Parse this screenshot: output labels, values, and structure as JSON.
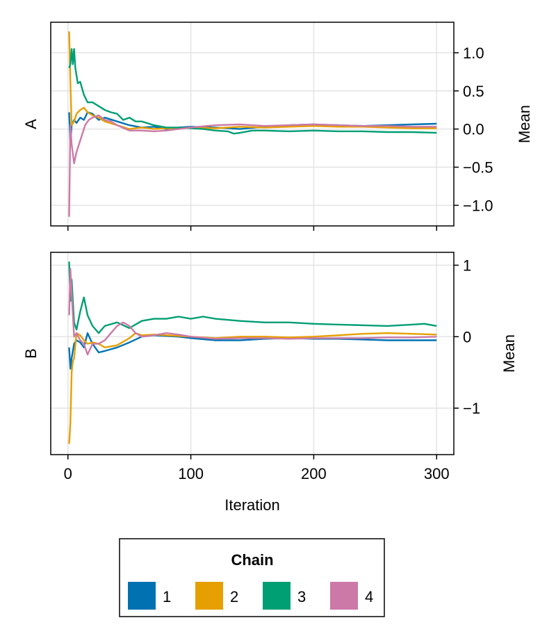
{
  "chart_data": [
    {
      "type": "line",
      "panel_label": "A",
      "ylabel": "Mean",
      "yaxis_side": "right",
      "xlim": [
        -14,
        314
      ],
      "ylim": [
        -1.27,
        1.4
      ],
      "yticks": [
        -1.0,
        -0.5,
        0.0,
        0.5,
        1.0
      ],
      "ytick_labels": [
        "−1.0",
        "−0.5",
        "0.0",
        "0.5",
        "1.0"
      ],
      "xticks": [
        0,
        100,
        200,
        300
      ],
      "show_xtick_labels": false,
      "grid": true,
      "series": [
        {
          "name": "1",
          "color": "#0072b2",
          "x": [
            1,
            2,
            3,
            5,
            7,
            10,
            13,
            16,
            20,
            25,
            30,
            40,
            50,
            60,
            70,
            80,
            90,
            100,
            120,
            140,
            160,
            180,
            200,
            220,
            240,
            260,
            280,
            300
          ],
          "y": [
            0.22,
            -0.2,
            0.05,
            0.12,
            0.08,
            0.15,
            0.12,
            0.22,
            0.2,
            0.12,
            0.15,
            0.1,
            0.05,
            0.02,
            0.03,
            0.0,
            0.02,
            0.03,
            0.02,
            0.0,
            0.03,
            0.05,
            0.06,
            0.05,
            0.04,
            0.05,
            0.06,
            0.07
          ]
        },
        {
          "name": "2",
          "color": "#e69f00",
          "x": [
            1,
            2,
            3,
            5,
            7,
            10,
            13,
            16,
            20,
            25,
            30,
            40,
            50,
            60,
            70,
            80,
            90,
            100,
            120,
            140,
            160,
            180,
            200,
            220,
            240,
            260,
            280,
            300
          ],
          "y": [
            1.28,
            0.6,
            0.05,
            0.1,
            0.2,
            0.25,
            0.28,
            0.22,
            0.18,
            0.15,
            0.1,
            0.05,
            0.0,
            0.02,
            0.0,
            0.01,
            0.0,
            0.02,
            0.01,
            0.03,
            0.02,
            0.03,
            0.04,
            0.03,
            0.03,
            0.02,
            0.01,
            0.01
          ]
        },
        {
          "name": "3",
          "color": "#009e73",
          "x": [
            1,
            2,
            3,
            4,
            5,
            6,
            8,
            10,
            13,
            16,
            20,
            25,
            30,
            35,
            40,
            45,
            50,
            55,
            60,
            70,
            80,
            90,
            100,
            110,
            120,
            130,
            135,
            140,
            150,
            160,
            180,
            200,
            220,
            240,
            260,
            280,
            300
          ],
          "y": [
            0.8,
            0.85,
            1.05,
            0.85,
            1.05,
            0.8,
            0.6,
            0.62,
            0.45,
            0.35,
            0.35,
            0.3,
            0.25,
            0.22,
            0.2,
            0.12,
            0.15,
            0.1,
            0.1,
            0.05,
            0.02,
            0.02,
            0.01,
            0.0,
            -0.02,
            -0.03,
            -0.06,
            -0.05,
            -0.02,
            -0.02,
            -0.03,
            -0.02,
            -0.03,
            -0.03,
            -0.04,
            -0.04,
            -0.05
          ]
        },
        {
          "name": "4",
          "color": "#cc79a7",
          "x": [
            1,
            2,
            3,
            5,
            7,
            9,
            11,
            14,
            17,
            20,
            25,
            30,
            35,
            40,
            50,
            60,
            70,
            80,
            90,
            100,
            120,
            140,
            160,
            180,
            200,
            220,
            240,
            260,
            280,
            300
          ],
          "y": [
            -1.15,
            0.05,
            -0.2,
            -0.45,
            -0.3,
            -0.2,
            -0.1,
            0.05,
            0.12,
            0.15,
            0.18,
            0.12,
            0.1,
            0.05,
            -0.02,
            -0.02,
            -0.03,
            -0.02,
            0.0,
            0.02,
            0.05,
            0.06,
            0.04,
            0.05,
            0.06,
            0.05,
            0.04,
            0.04,
            0.03,
            0.03
          ]
        }
      ]
    },
    {
      "type": "line",
      "panel_label": "B",
      "ylabel": "Mean",
      "yaxis_side": "right",
      "xlim": [
        -14,
        314
      ],
      "ylim": [
        -1.65,
        1.18
      ],
      "yticks": [
        -1,
        0,
        1
      ],
      "ytick_labels": [
        "−1",
        "0",
        "1"
      ],
      "xticks": [
        0,
        100,
        200,
        300
      ],
      "xtick_labels": [
        "0",
        "100",
        "200",
        "300"
      ],
      "xlabel": "Iteration",
      "show_xtick_labels": true,
      "grid": true,
      "series": [
        {
          "name": "1",
          "color": "#0072b2",
          "x": [
            1,
            2,
            3,
            5,
            7,
            10,
            13,
            16,
            20,
            25,
            30,
            40,
            50,
            60,
            70,
            80,
            90,
            100,
            120,
            140,
            160,
            180,
            200,
            220,
            240,
            260,
            280,
            300
          ],
          "y": [
            -0.15,
            -0.45,
            -0.3,
            -0.1,
            -0.05,
            -0.08,
            -0.15,
            0.05,
            -0.1,
            -0.22,
            -0.2,
            -0.15,
            -0.08,
            0.0,
            0.02,
            0.01,
            0.0,
            -0.02,
            -0.05,
            -0.05,
            -0.03,
            -0.02,
            -0.03,
            -0.03,
            -0.04,
            -0.05,
            -0.05,
            -0.05
          ]
        },
        {
          "name": "2",
          "color": "#e69f00",
          "x": [
            1,
            2,
            3,
            4,
            5,
            7,
            10,
            13,
            16,
            20,
            25,
            30,
            40,
            50,
            55,
            60,
            70,
            80,
            90,
            100,
            120,
            140,
            160,
            180,
            200,
            220,
            240,
            260,
            280,
            300
          ],
          "y": [
            -1.5,
            -1.2,
            -0.5,
            -0.35,
            -0.3,
            0.05,
            0.02,
            -0.05,
            -0.1,
            -0.08,
            -0.1,
            -0.15,
            -0.12,
            -0.02,
            0.05,
            0.02,
            0.03,
            0.02,
            0.01,
            0.0,
            -0.02,
            0.0,
            0.0,
            -0.01,
            0.0,
            0.02,
            0.04,
            0.05,
            0.04,
            0.03
          ]
        },
        {
          "name": "3",
          "color": "#009e73",
          "x": [
            1,
            2,
            3,
            5,
            7,
            10,
            13,
            16,
            20,
            25,
            30,
            40,
            50,
            60,
            70,
            80,
            90,
            100,
            110,
            120,
            140,
            160,
            180,
            200,
            220,
            240,
            260,
            280,
            290,
            300
          ],
          "y": [
            1.05,
            0.5,
            0.8,
            0.2,
            0.1,
            0.35,
            0.55,
            0.3,
            0.15,
            0.05,
            0.15,
            0.2,
            0.12,
            0.22,
            0.25,
            0.25,
            0.28,
            0.25,
            0.28,
            0.25,
            0.22,
            0.2,
            0.2,
            0.18,
            0.17,
            0.16,
            0.15,
            0.17,
            0.18,
            0.15
          ]
        },
        {
          "name": "4",
          "color": "#cc79a7",
          "x": [
            1,
            2,
            3,
            5,
            7,
            10,
            13,
            16,
            20,
            25,
            30,
            35,
            40,
            45,
            50,
            55,
            60,
            70,
            80,
            90,
            100,
            120,
            140,
            160,
            180,
            200,
            220,
            240,
            260,
            280,
            300
          ],
          "y": [
            0.3,
            0.95,
            0.6,
            0.0,
            0.05,
            -0.05,
            -0.1,
            -0.25,
            -0.1,
            -0.1,
            -0.05,
            0.05,
            0.15,
            0.2,
            0.15,
            0.05,
            0.0,
            0.02,
            0.05,
            0.03,
            0.0,
            -0.03,
            -0.02,
            -0.02,
            -0.03,
            -0.02,
            -0.02,
            -0.02,
            -0.01,
            -0.01,
            0.0
          ]
        }
      ]
    }
  ],
  "legend": {
    "title": "Chain",
    "items": [
      {
        "label": "1",
        "color": "#0072b2"
      },
      {
        "label": "2",
        "color": "#e69f00"
      },
      {
        "label": "3",
        "color": "#009e73"
      },
      {
        "label": "4",
        "color": "#cc79a7"
      }
    ]
  }
}
